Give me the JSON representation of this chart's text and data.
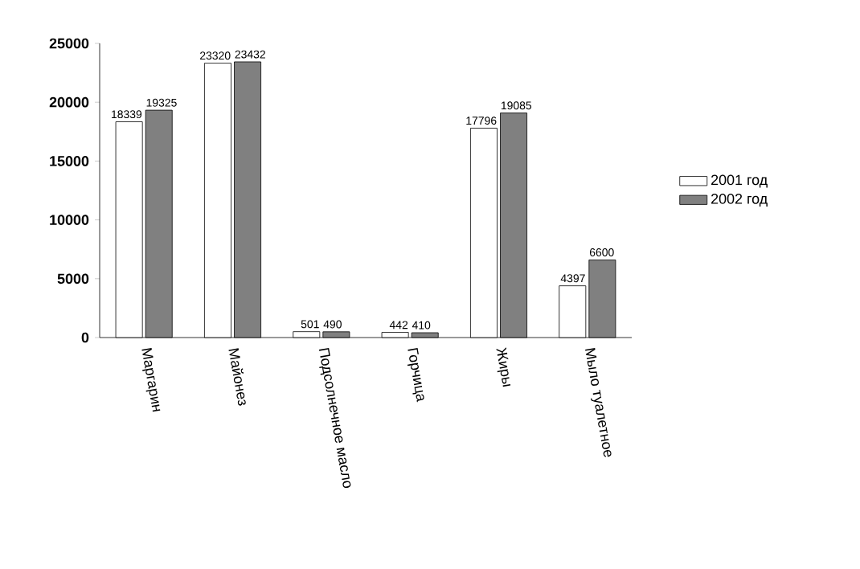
{
  "chart_data": {
    "type": "bar",
    "categories": [
      "Маргарин",
      "Майонез",
      "Подсолнечное масло",
      "Горчица",
      "Жиры",
      "Мыло туалетное"
    ],
    "series": [
      {
        "name": "2001 год",
        "color": "#ffffff",
        "values": [
          18339,
          23320,
          501,
          442,
          17796,
          4397
        ]
      },
      {
        "name": "2002 год",
        "color": "#808080",
        "values": [
          19325,
          23432,
          490,
          410,
          19085,
          6600
        ]
      }
    ],
    "ylim": [
      0,
      25000
    ],
    "yticks": [
      0,
      5000,
      10000,
      15000,
      20000,
      25000
    ],
    "data_labels": true,
    "legend": "right",
    "grid": false
  }
}
